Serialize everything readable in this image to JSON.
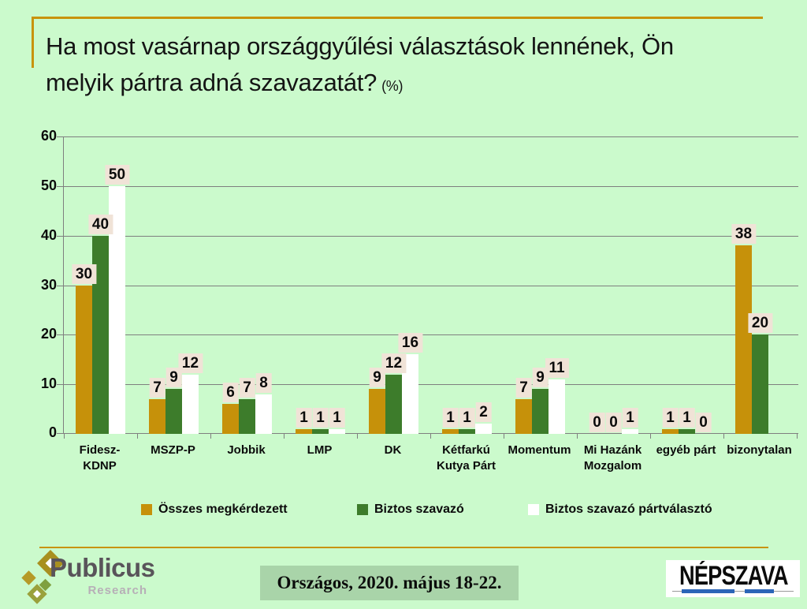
{
  "title": {
    "line1": "Ha most vasárnap országgyűlési választások lennének, Ön",
    "line2": "melyik pártra adná szavazatát?",
    "suffix": "(%)"
  },
  "chart_data": {
    "type": "bar",
    "title": "Ha most vasárnap országgyűlési választások lennének, Ön melyik pártra adná szavazatát? (%)",
    "categories": [
      "Fidesz-KDNP",
      "MSZP-P",
      "Jobbik",
      "LMP",
      "DK",
      "Kétfarkú Kutya Párt",
      "Momentum",
      "Mi Hazánk Mozgalom",
      "egyéb párt",
      "bizonytalan"
    ],
    "category_lines": [
      [
        "Fidesz-",
        "KDNP"
      ],
      [
        "MSZP-P"
      ],
      [
        "Jobbik"
      ],
      [
        "LMP"
      ],
      [
        "DK"
      ],
      [
        "Kétfarkú",
        "Kutya Párt"
      ],
      [
        "Momentum"
      ],
      [
        "Mi Hazánk",
        "Mozgalom"
      ],
      [
        "egyéb párt"
      ],
      [
        "bizonytalan"
      ]
    ],
    "series": [
      {
        "name": "Összes megkérdezett",
        "color": "#C6910A",
        "values": [
          30,
          7,
          6,
          1,
          9,
          1,
          7,
          0,
          1,
          38
        ]
      },
      {
        "name": "Biztos szavazó",
        "color": "#3D7C2B",
        "values": [
          40,
          9,
          7,
          1,
          12,
          1,
          9,
          0,
          1,
          20
        ]
      },
      {
        "name": "Biztos szavazó pártválasztó",
        "color": "#FFFFFF",
        "values": [
          50,
          12,
          8,
          1,
          16,
          2,
          11,
          1,
          0,
          null
        ]
      }
    ],
    "ylim": [
      0,
      60
    ],
    "yticks": [
      0,
      10,
      20,
      30,
      40,
      50,
      60
    ],
    "grid": true,
    "legend_position": "bottom",
    "data_labels": true
  },
  "footer": {
    "survey_label": "Országos, 2020. május 18-22.",
    "publicus": {
      "name": "Publicus",
      "subname": "Research"
    },
    "nepszava": {
      "name": "NÉPSZAVA"
    }
  },
  "colors": {
    "background": "#CBFACC",
    "accent_gold": "#C8930C",
    "label_bg": "#F0E3D7",
    "grid": "#7F7F7F",
    "survey_box_bg": "#A9D4A9",
    "publicus_text": "#59545A",
    "publicus_sub": "#B7AFB7",
    "publicus_gold": "#A8901F",
    "publicus_gold2": "#B59A26",
    "publicus_green": "#7FA03F",
    "publicus_olive": "#9AA13B",
    "nepszava_blue": "#2C66B8"
  }
}
